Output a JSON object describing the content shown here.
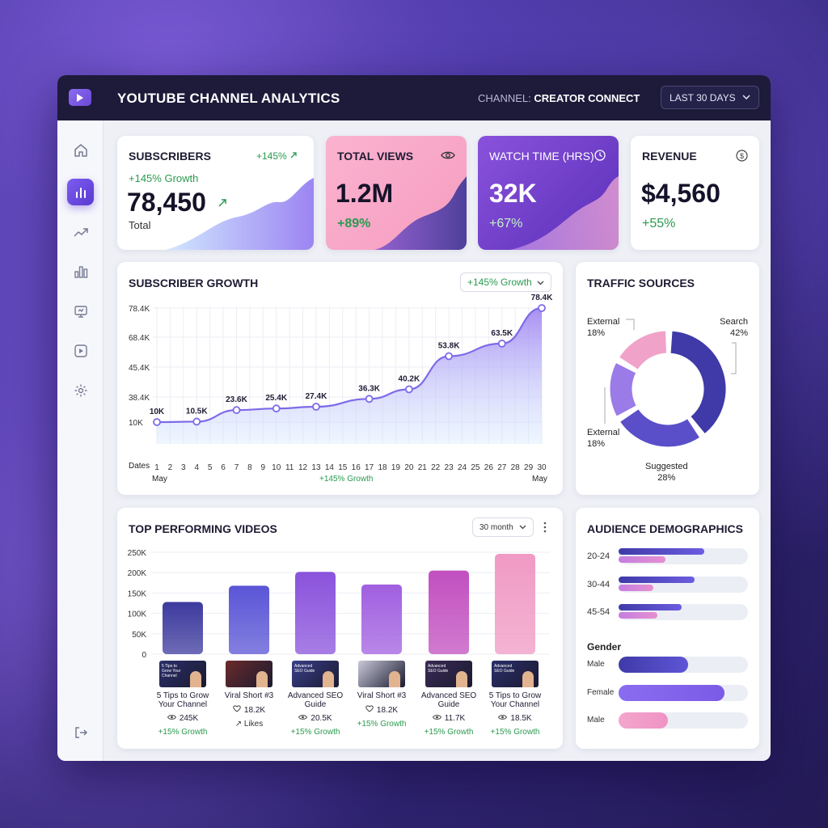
{
  "header": {
    "title": "YOUTUBE CHANNEL ANALYTICS",
    "channel_label": "CHANNEL:",
    "channel_name": "CREATOR CONNECT",
    "range": "LAST 30 DAYS"
  },
  "sidebar": {
    "items": [
      "home-icon",
      "analytics-icon",
      "trend-icon",
      "bar-chart-icon",
      "monitor-icon",
      "video-icon",
      "settings-icon"
    ],
    "logout": "logout-icon"
  },
  "kpis": {
    "subscribers": {
      "title": "SUBSCRIBERS",
      "badge": "+145%",
      "growth": "+145% Growth",
      "value": "78,450",
      "sub": "Total"
    },
    "views": {
      "title": "TOTAL VIEWS",
      "value": "1.2M",
      "change": "+89%"
    },
    "watch": {
      "title": "WATCH TIME (HRS)",
      "value": "32K",
      "change": "+67%"
    },
    "revenue": {
      "title": "REVENUE",
      "value": "$4,560",
      "change": "+55%"
    }
  },
  "subscriber_growth": {
    "title": "SUBSCRIBER GROWTH",
    "filter": "+145% Growth",
    "footer": "+145% Growth",
    "x_label": "Dates",
    "month_start": "May",
    "month_end": "May"
  },
  "traffic": {
    "title": "TRAFFIC SOURCES",
    "labels": [
      {
        "name": "External",
        "pct": "18%"
      },
      {
        "name": "Search",
        "pct": "42%"
      },
      {
        "name": "External",
        "pct": "18%"
      },
      {
        "name": "Suggested",
        "pct": "28%"
      }
    ]
  },
  "videos": {
    "title": "TOP PERFORMING VIDEOS",
    "filter": "30 month",
    "items": [
      {
        "title1": "5 Tips to Grow",
        "title2": "Your Channel",
        "stat": "245K",
        "stat_icon": "eye-icon",
        "growth": "+15% Growth",
        "thumb": "5 Tips to Grow Your Channel"
      },
      {
        "title1": "Viral Short #3",
        "title2": "",
        "stat": "18.2K",
        "stat_icon": "heart-icon",
        "growth": "Likes",
        "thumb": ""
      },
      {
        "title1": "Advanced SEO",
        "title2": "Guide",
        "stat": "20.5K",
        "stat_icon": "eye-icon",
        "growth": "+15% Growth",
        "thumb": "Advanced SEO Guide"
      },
      {
        "title1": "Viral Short #3",
        "title2": "",
        "stat": "18.2K",
        "stat_icon": "heart-icon",
        "growth": "+15% Growth",
        "thumb": ""
      },
      {
        "title1": "Advanced SEO",
        "title2": "Guide",
        "stat": "11.7K",
        "stat_icon": "eye-icon",
        "growth": "+15% Growth",
        "thumb": "Advanced SEO Guide"
      },
      {
        "title1": "5 Tips to Grow",
        "title2": "Your Channel",
        "stat": "18.5K",
        "stat_icon": "eye-icon",
        "growth": "+15% Growth",
        "thumb": "Advanced SEO Guide"
      }
    ]
  },
  "demographics": {
    "title": "AUDIENCE DEMOGRAPHICS",
    "gender_title": "Gender",
    "age": [
      {
        "label": "20-24",
        "primary": 0.66,
        "secondary": 0.36
      },
      {
        "label": "30-44",
        "primary": 0.59,
        "secondary": 0.27
      },
      {
        "label": "45-54",
        "primary": 0.49,
        "secondary": 0.3
      }
    ],
    "gender": [
      {
        "label": "Male",
        "value": 0.54
      },
      {
        "label": "Female",
        "value": 0.82
      },
      {
        "label": "Male",
        "value": 0.38
      }
    ]
  },
  "chart_data": [
    {
      "type": "area",
      "title": "SUBSCRIBER GROWTH",
      "x": [
        1,
        2,
        3,
        4,
        5,
        6,
        7,
        8,
        9,
        10,
        11,
        12,
        13,
        14,
        15,
        16,
        17,
        18,
        19,
        20,
        21,
        22,
        23,
        24,
        25,
        26,
        27,
        28,
        29,
        30
      ],
      "x_ticks": [
        "1",
        "2",
        "3",
        "4",
        "5",
        "6",
        "7",
        "8",
        "9",
        "10",
        "11",
        "12",
        "13",
        "14",
        "15",
        "16",
        "17",
        "18",
        "19",
        "20",
        "21",
        "22",
        "23",
        "24",
        "25",
        "26",
        "27",
        "28",
        "29",
        "30"
      ],
      "y_ticks": [
        "10K",
        "38.4K",
        "45.4K",
        "68.4K",
        "78.4K"
      ],
      "points": [
        {
          "x": 1,
          "y": 10000,
          "label": "10K"
        },
        {
          "x": 4,
          "y": 10500,
          "label": "10.5K"
        },
        {
          "x": 7,
          "y": 23600,
          "label": "23.6K"
        },
        {
          "x": 10,
          "y": 25400,
          "label": "25.4K"
        },
        {
          "x": 13,
          "y": 27400,
          "label": "27.4K"
        },
        {
          "x": 17,
          "y": 36300,
          "label": "36.3K"
        },
        {
          "x": 20,
          "y": 40200,
          "label": "40.2K"
        },
        {
          "x": 23,
          "y": 53800,
          "label": "53.8K"
        },
        {
          "x": 27,
          "y": 63500,
          "label": "63.5K"
        },
        {
          "x": 30,
          "y": 78400,
          "label": "78.4K"
        }
      ]
    },
    {
      "type": "pie",
      "title": "TRAFFIC SOURCES",
      "categories": [
        "Search",
        "Suggested",
        "External",
        "External"
      ],
      "values": [
        42,
        28,
        18,
        18
      ],
      "colors": [
        "#3f3aa8",
        "#5a4fc9",
        "#9b7be8",
        "#f0a2c8"
      ]
    },
    {
      "type": "bar",
      "title": "TOP PERFORMING VIDEOS",
      "categories": [
        "5 Tips to Grow Your Channel",
        "Viral Short #3",
        "Advanced SEO Guide",
        "Viral Short #3",
        "Advanced SEO Guide",
        "5 Tips to Grow Your Channel"
      ],
      "values": [
        128000,
        168000,
        202000,
        171000,
        205000,
        246000
      ],
      "y_ticks": [
        "0",
        "50K",
        "100K",
        "150K",
        "200K",
        "250K"
      ],
      "ylim": [
        0,
        250000
      ],
      "colors": [
        "#3d3a9e",
        "#5a55d6",
        "#8a52dc",
        "#a15fe0",
        "#c24fc0",
        "#f09ac4"
      ]
    }
  ]
}
